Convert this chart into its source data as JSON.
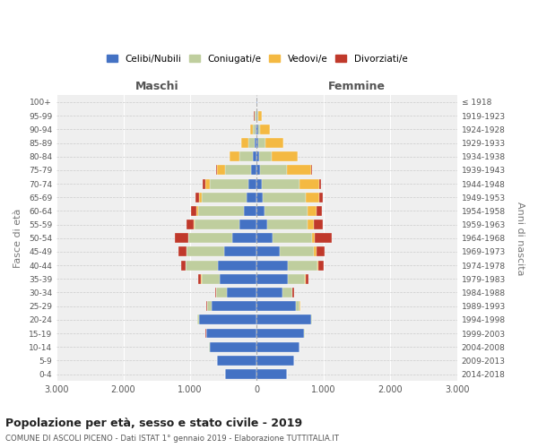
{
  "age_groups": [
    "100+",
    "95-99",
    "90-94",
    "85-89",
    "80-84",
    "75-79",
    "70-74",
    "65-69",
    "60-64",
    "55-59",
    "50-54",
    "45-49",
    "40-44",
    "35-39",
    "30-34",
    "25-29",
    "20-24",
    "15-19",
    "10-14",
    "5-9",
    "0-4"
  ],
  "birth_years": [
    "≤ 1918",
    "1919-1923",
    "1924-1928",
    "1929-1933",
    "1934-1938",
    "1939-1943",
    "1944-1948",
    "1949-1953",
    "1954-1958",
    "1959-1963",
    "1964-1968",
    "1969-1973",
    "1974-1978",
    "1979-1983",
    "1984-1988",
    "1989-1993",
    "1994-1998",
    "1999-2003",
    "2004-2008",
    "2009-2013",
    "2014-2018"
  ],
  "maschi": {
    "celibi": [
      2,
      12,
      20,
      35,
      55,
      80,
      120,
      160,
      200,
      260,
      370,
      490,
      580,
      560,
      450,
      680,
      870,
      760,
      710,
      600,
      470
    ],
    "coniugati": [
      2,
      15,
      35,
      95,
      200,
      400,
      580,
      660,
      680,
      670,
      650,
      560,
      480,
      270,
      160,
      65,
      18,
      4,
      2,
      1,
      0
    ],
    "vedovi": [
      2,
      12,
      40,
      100,
      150,
      110,
      75,
      45,
      22,
      12,
      6,
      5,
      5,
      2,
      1,
      1,
      1,
      0,
      0,
      0,
      0
    ],
    "divorziati": [
      0,
      2,
      3,
      5,
      8,
      20,
      35,
      50,
      85,
      110,
      200,
      120,
      70,
      45,
      18,
      8,
      4,
      2,
      1,
      0,
      0
    ]
  },
  "femmine": {
    "nubili": [
      2,
      6,
      15,
      22,
      32,
      52,
      72,
      90,
      115,
      155,
      240,
      340,
      460,
      460,
      380,
      580,
      810,
      710,
      640,
      560,
      450
    ],
    "coniugate": [
      2,
      12,
      35,
      100,
      195,
      400,
      570,
      640,
      640,
      610,
      590,
      520,
      450,
      260,
      155,
      65,
      18,
      4,
      2,
      1,
      0
    ],
    "vedove": [
      5,
      55,
      140,
      270,
      380,
      360,
      290,
      210,
      140,
      85,
      42,
      28,
      16,
      8,
      3,
      2,
      1,
      0,
      0,
      0,
      0
    ],
    "divorziate": [
      0,
      2,
      3,
      5,
      10,
      20,
      32,
      52,
      82,
      145,
      250,
      125,
      72,
      40,
      14,
      8,
      4,
      2,
      0,
      0,
      0
    ]
  },
  "colors": {
    "celibi": "#4472C4",
    "coniugati": "#BFCE9E",
    "vedovi": "#F4B942",
    "divorziati": "#C0392B"
  },
  "xlim": 3000,
  "title": "Popolazione per età, sesso e stato civile - 2019",
  "subtitle": "COMUNE DI ASCOLI PICENO - Dati ISTAT 1° gennaio 2019 - Elaborazione TUTTITALIA.IT",
  "ylabel_left": "Fasce di età",
  "ylabel_right": "Anni di nascita",
  "xlabel_maschi": "Maschi",
  "xlabel_femmine": "Femmine",
  "legend_labels": [
    "Celibi/Nubili",
    "Coniugati/e",
    "Vedovi/e",
    "Divorziati/e"
  ]
}
